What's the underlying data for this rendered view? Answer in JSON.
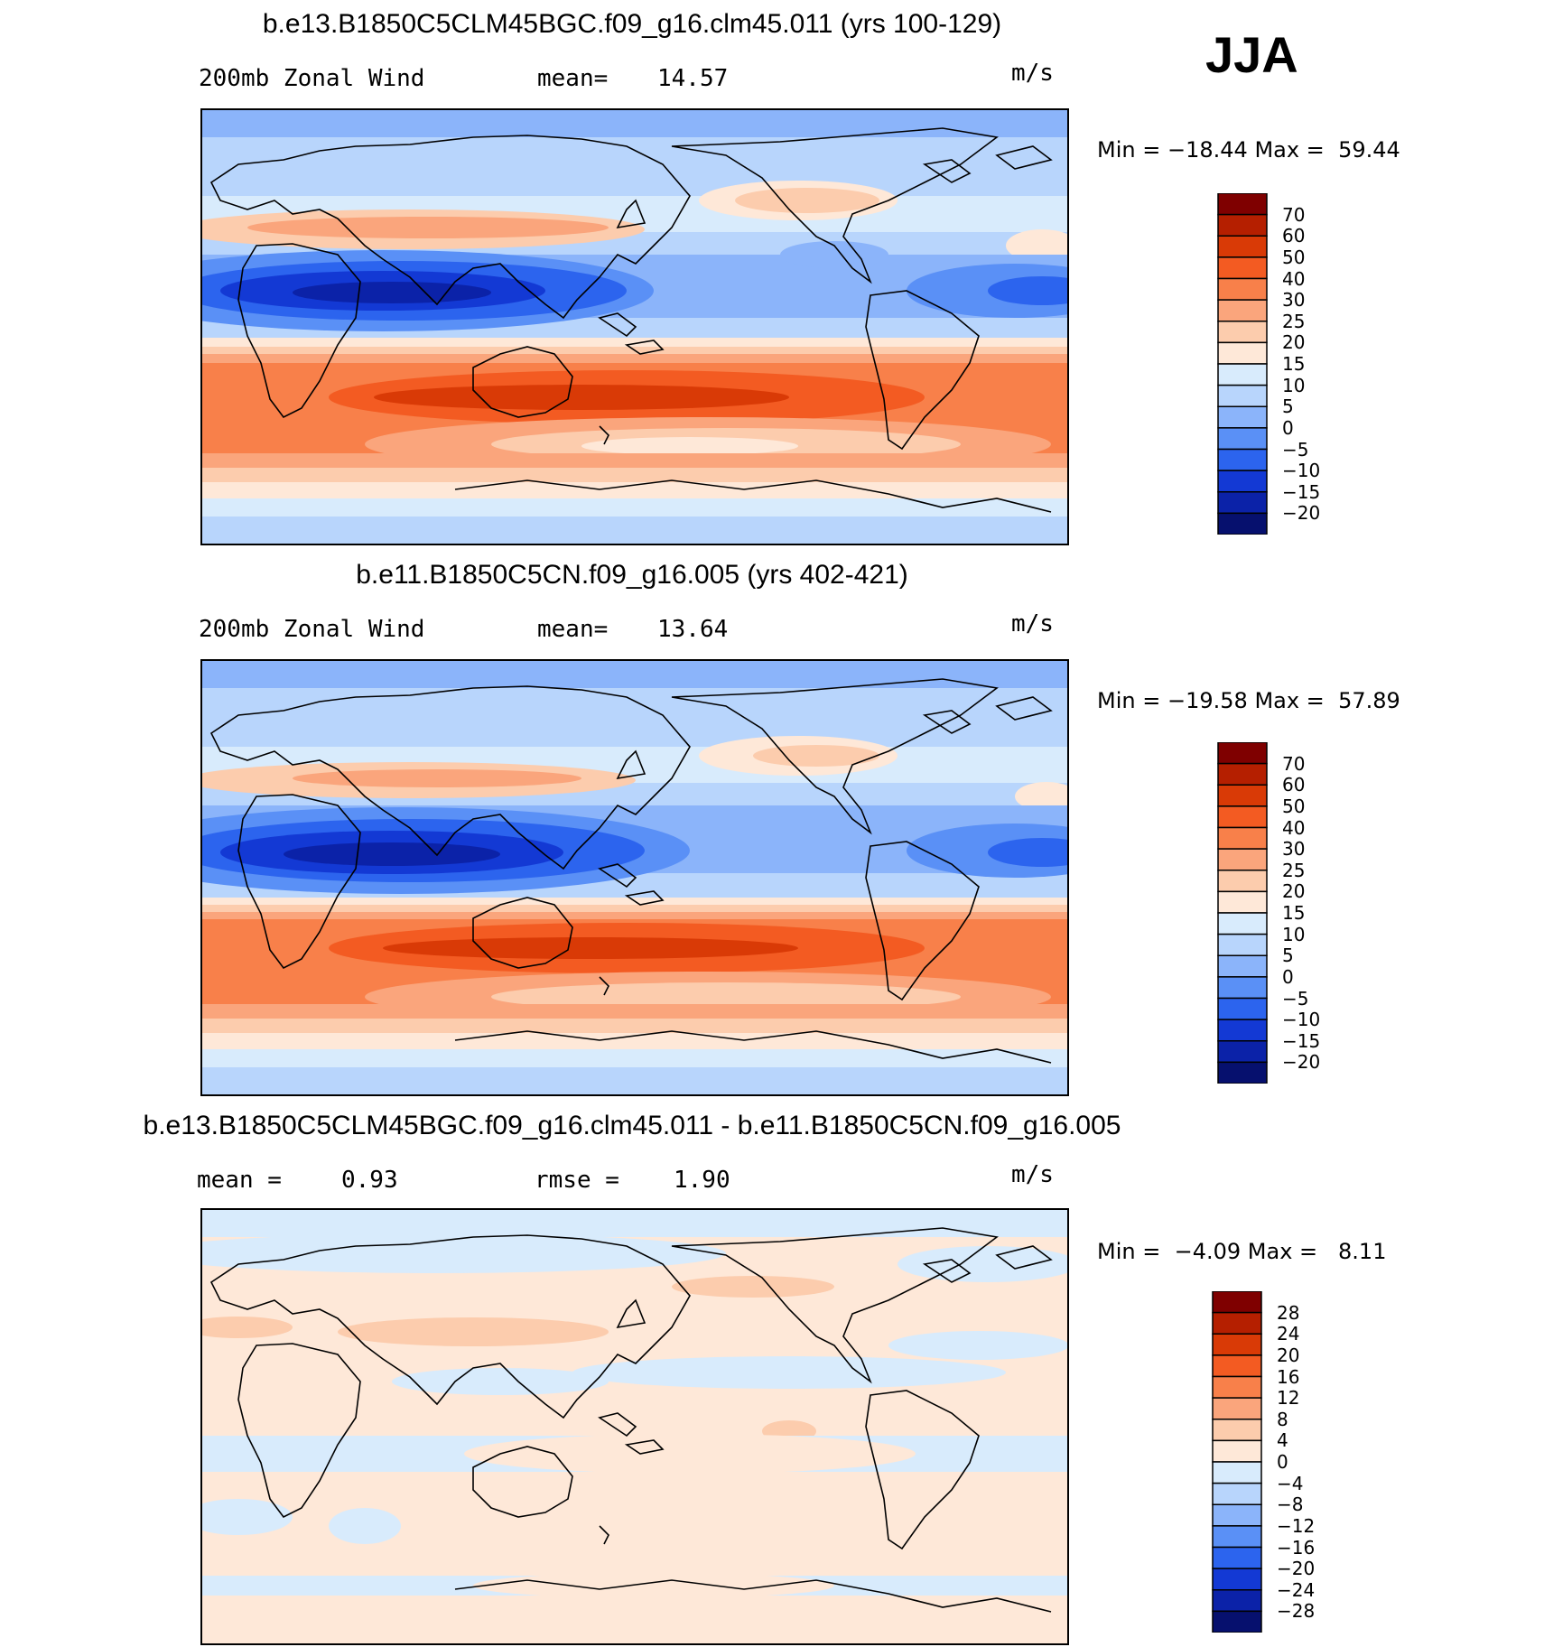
{
  "season": "JJA",
  "panels": [
    {
      "id": "top",
      "title": "b.e13.B1850C5CLM45BGC.f09_g16.clm45.011 (yrs 100-129)",
      "variable": "200mb Zonal Wind",
      "stat1_label": "mean=",
      "stat1_value": "14.57",
      "units": "m/s",
      "min_label": "Min =",
      "min_value": "−18.44",
      "max_label": "Max =",
      "max_value": "59.44",
      "colorbar": {
        "labels": [
          "70",
          "60",
          "50",
          "40",
          "30",
          "25",
          "20",
          "15",
          "10",
          "5",
          "0",
          "−5",
          "−10",
          "−15",
          "−20"
        ],
        "colors": [
          "#7f0000",
          "#b51f00",
          "#d93a06",
          "#f35b22",
          "#f8804a",
          "#faa57c",
          "#fcccad",
          "#fee8d8",
          "#d8ebfc",
          "#b8d5fc",
          "#8bb4fa",
          "#5a90f6",
          "#2c64ee",
          "#1339d4",
          "#0b22a8",
          "#06106e"
        ]
      }
    },
    {
      "id": "middle",
      "title": "b.e11.B1850C5CN.f09_g16.005 (yrs 402-421)",
      "variable": "200mb Zonal Wind",
      "stat1_label": "mean=",
      "stat1_value": "13.64",
      "units": "m/s",
      "min_label": "Min =",
      "min_value": "−19.58",
      "max_label": "Max =",
      "max_value": "57.89",
      "colorbar": {
        "labels": [
          "70",
          "60",
          "50",
          "40",
          "30",
          "25",
          "20",
          "15",
          "10",
          "5",
          "0",
          "−5",
          "−10",
          "−15",
          "−20"
        ],
        "colors": [
          "#7f0000",
          "#b51f00",
          "#d93a06",
          "#f35b22",
          "#f8804a",
          "#faa57c",
          "#fcccad",
          "#fee8d8",
          "#d8ebfc",
          "#b8d5fc",
          "#8bb4fa",
          "#5a90f6",
          "#2c64ee",
          "#1339d4",
          "#0b22a8",
          "#06106e"
        ]
      }
    },
    {
      "id": "bottom",
      "title": "b.e13.B1850C5CLM45BGC.f09_g16.clm45.011 - b.e11.B1850C5CN.f09_g16.005",
      "stat1_label": "mean =",
      "stat1_value": "0.93",
      "stat2_label": "rmse =",
      "stat2_value": "1.90",
      "units": "m/s",
      "min_label": "Min =",
      "min_value": "−4.09",
      "max_label": "Max =",
      "max_value": "8.11",
      "colorbar": {
        "labels": [
          "28",
          "24",
          "20",
          "16",
          "12",
          "8",
          "4",
          "0",
          "−4",
          "−8",
          "−12",
          "−16",
          "−20",
          "−24",
          "−28"
        ],
        "colors": [
          "#7f0000",
          "#b51f00",
          "#d93a06",
          "#f35b22",
          "#f8804a",
          "#faa57c",
          "#fcccad",
          "#fee8d8",
          "#d8ebfc",
          "#b8d5fc",
          "#8bb4fa",
          "#5a90f6",
          "#2c64ee",
          "#1339d4",
          "#0b22a8",
          "#06106e"
        ]
      }
    }
  ]
}
